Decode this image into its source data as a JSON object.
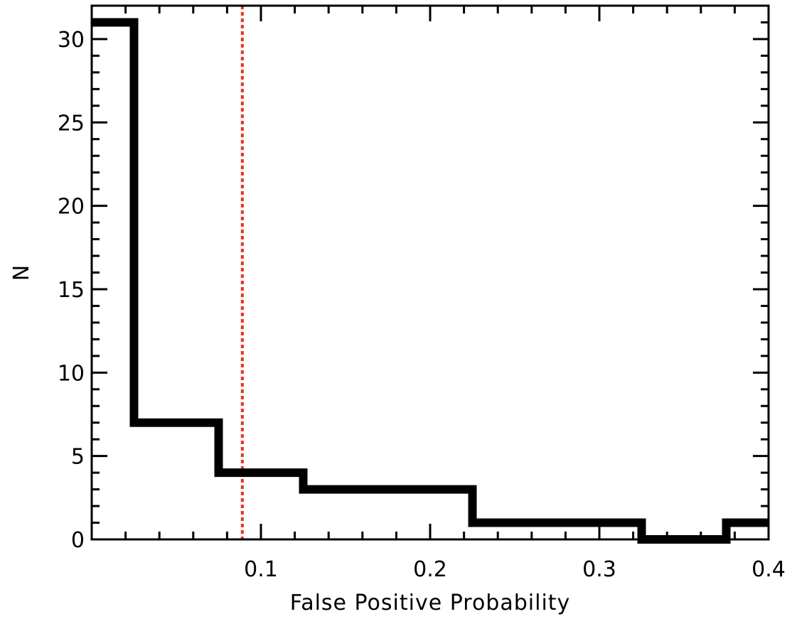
{
  "chart_data": {
    "type": "histogram",
    "title": "",
    "xlabel": "False Positive Probability",
    "ylabel": "N",
    "xlim": [
      0.0,
      0.4
    ],
    "ylim": [
      0,
      32
    ],
    "x_ticks": [
      0.1,
      0.2,
      0.3,
      0.4
    ],
    "x_tick_labels": [
      "0.1",
      "0.2",
      "0.3",
      "0.4"
    ],
    "y_ticks": [
      0,
      5,
      10,
      15,
      20,
      25,
      30
    ],
    "y_tick_labels": [
      "0",
      "5",
      "10",
      "15",
      "20",
      "25",
      "30"
    ],
    "bin_edges": [
      0.0,
      0.025,
      0.075,
      0.125,
      0.225,
      0.325,
      0.375,
      0.4
    ],
    "counts": [
      31,
      7,
      4,
      3,
      1,
      0,
      1
    ],
    "reference_line": {
      "x": 0.089,
      "style": "dotted"
    },
    "grid": false,
    "colors": {
      "histogram": "#000000",
      "reference_line": "#e8331c",
      "frame": "#000000"
    }
  }
}
